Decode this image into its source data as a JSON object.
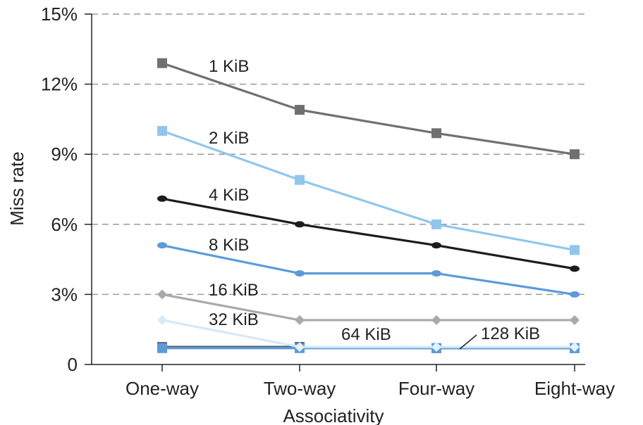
{
  "chart_data": {
    "type": "line",
    "xlabel": "Associativity",
    "ylabel": "Miss rate",
    "categories": [
      "One-way",
      "Two-way",
      "Four-way",
      "Eight-way"
    ],
    "ylim": [
      0,
      15
    ],
    "yticks": [
      {
        "value": 0,
        "label": "0"
      },
      {
        "value": 3,
        "label": "3%"
      },
      {
        "value": 6,
        "label": "6%"
      },
      {
        "value": 9,
        "label": "9%"
      },
      {
        "value": 12,
        "label": "12%"
      },
      {
        "value": 15,
        "label": "15%"
      }
    ],
    "grid": "horizontal dashed",
    "series": [
      {
        "name": "1 KiB",
        "values": [
          12.9,
          10.9,
          9.9,
          9.0
        ],
        "color": "#707070",
        "marker": "square"
      },
      {
        "name": "2 KiB",
        "values": [
          10.0,
          7.9,
          6.0,
          4.9
        ],
        "color": "#8fc7ec",
        "marker": "square"
      },
      {
        "name": "4 KiB",
        "values": [
          7.1,
          6.0,
          5.1,
          4.1
        ],
        "color": "#1c1c1c",
        "marker": "circle"
      },
      {
        "name": "8 KiB",
        "values": [
          5.1,
          3.9,
          3.9,
          3.0
        ],
        "color": "#5b9bd9",
        "marker": "circle"
      },
      {
        "name": "16 KiB",
        "values": [
          3.0,
          1.9,
          1.9,
          1.9
        ],
        "color": "#a9a9a9",
        "marker": "diamond"
      },
      {
        "name": "32 KiB",
        "values": [
          1.9,
          0.75,
          0.75,
          0.75
        ],
        "color": "#d6e9f7",
        "marker": "diamond"
      },
      {
        "name": "64 KiB",
        "values": [
          0.75,
          0.75,
          0.7,
          0.7
        ],
        "color": "#5a5a5a",
        "marker": "square"
      },
      {
        "name": "128 KiB",
        "values": [
          0.7,
          0.7,
          0.7,
          0.7
        ],
        "color": "#5b9bd9",
        "marker": "square"
      }
    ]
  }
}
